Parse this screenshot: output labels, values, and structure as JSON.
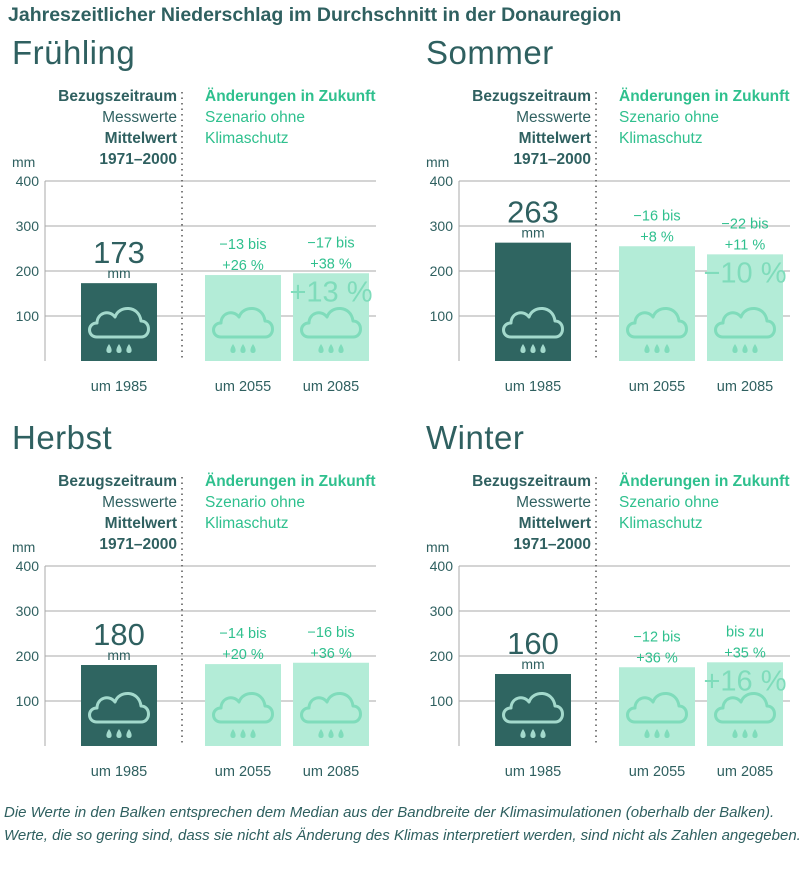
{
  "title": "Jahreszeitlicher Niederschlag im Durchschnitt in der Donauregion",
  "labels": {
    "ref_title": "Bezugszeitraum",
    "ref_line2": "Messwerte",
    "ref_line3": "Mittelwert",
    "ref_line4": "1971–2000",
    "fut_title": "Änderungen in Zukunft",
    "fut_line2": "Szenario ohne",
    "fut_line3": "Klimaschutz",
    "unit_axis": "mm",
    "unit_value": "mm"
  },
  "colors": {
    "dark": "#2f6561",
    "light": "#b3ecd7",
    "accent": "#2fc08e",
    "text": "#2f6060",
    "grid": "#a8a8a8"
  },
  "icon": "rain-cloud-icon",
  "footnote": "Die Werte in den Balken entsprechen dem Median aus der Bandbreite der Klimasimulationen (oberhalb der Balken). Werte, die so gering sind, dass sie nicht als Änderung des Klimas interpretiert werden, sind nicht als Zahlen angegeben.",
  "chart_data": [
    {
      "type": "bar",
      "title": "Frühling",
      "ylabel": "mm",
      "ylim": [
        0,
        400
      ],
      "yticks": [
        100,
        200,
        300,
        400
      ],
      "categories": [
        "um 1985",
        "um 2055",
        "um 2085"
      ],
      "values": [
        173,
        191,
        195
      ],
      "ref_value_label": "173",
      "ranges": [
        "",
        "−13 bis\n+26 %",
        "−17 bis\n+38 %"
      ],
      "medians": [
        "",
        "",
        "+13 %"
      ]
    },
    {
      "type": "bar",
      "title": "Sommer",
      "ylabel": "mm",
      "ylim": [
        0,
        400
      ],
      "yticks": [
        100,
        200,
        300,
        400
      ],
      "categories": [
        "um 1985",
        "um 2055",
        "um 2085"
      ],
      "values": [
        263,
        255,
        237
      ],
      "ref_value_label": "263",
      "ranges": [
        "",
        "−16 bis\n+8 %",
        "−22 bis\n+11 %"
      ],
      "medians": [
        "",
        "",
        "−10 %"
      ]
    },
    {
      "type": "bar",
      "title": "Herbst",
      "ylabel": "mm",
      "ylim": [
        0,
        400
      ],
      "yticks": [
        100,
        200,
        300,
        400
      ],
      "categories": [
        "um 1985",
        "um 2055",
        "um 2085"
      ],
      "values": [
        180,
        182,
        185
      ],
      "ref_value_label": "180",
      "ranges": [
        "",
        "−14 bis\n+20 %",
        "−16 bis\n+36 %"
      ],
      "medians": [
        "",
        "",
        ""
      ]
    },
    {
      "type": "bar",
      "title": "Winter",
      "ylabel": "mm",
      "ylim": [
        0,
        400
      ],
      "yticks": [
        100,
        200,
        300,
        400
      ],
      "categories": [
        "um 1985",
        "um 2055",
        "um 2085"
      ],
      "values": [
        160,
        175,
        186
      ],
      "ref_value_label": "160",
      "ranges": [
        "",
        "−12 bis\n+36 %",
        "bis zu\n+35 %"
      ],
      "medians": [
        "",
        "",
        "+16 %"
      ]
    }
  ]
}
